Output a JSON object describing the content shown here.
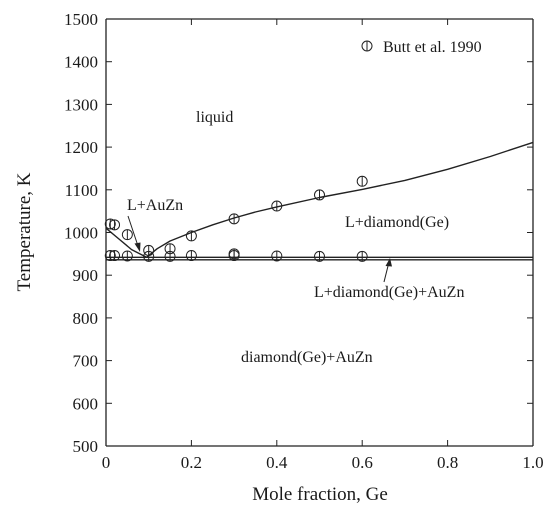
{
  "chart_data": {
    "type": "scatter",
    "xlabel": "Mole fraction, Ge",
    "ylabel": "Temperature, K",
    "xlim": [
      0,
      1.0
    ],
    "ylim": [
      500,
      1500
    ],
    "x_ticks": [
      "0",
      "0.2",
      "0.4",
      "0.6",
      "0.8",
      "1.0"
    ],
    "x_tick_values": [
      0,
      0.2,
      0.4,
      0.6,
      0.8,
      1.0
    ],
    "y_ticks": [
      "500",
      "600",
      "700",
      "800",
      "900",
      "1000",
      "1100",
      "1200",
      "1300",
      "1400",
      "1500"
    ],
    "y_tick_values": [
      500,
      600,
      700,
      800,
      900,
      1000,
      1100,
      1200,
      1300,
      1400,
      1500
    ],
    "grid": false,
    "legend": {
      "position": "top-right",
      "entries": [
        "Butt et al. 1990"
      ]
    },
    "region_labels": {
      "liquid": "liquid",
      "l_auzn": "L+AuZn",
      "l_diamond": "L+diamond(Ge)",
      "l_diamond_auzn": "L+diamond(Ge)+AuZn",
      "diamond_auzn": "diamond(Ge)+AuZn"
    },
    "computed_lines": {
      "liquidus_auzn": {
        "x": [
          0.0,
          0.03,
          0.06,
          0.095
        ],
        "y": [
          1010,
          985,
          960,
          942
        ]
      },
      "liquidus_ge": {
        "x": [
          0.095,
          0.12,
          0.15,
          0.2,
          0.25,
          0.3,
          0.35,
          0.4,
          0.5,
          0.6,
          0.7,
          0.8,
          0.9,
          1.0
        ],
        "y": [
          942,
          962,
          980,
          1000,
          1018,
          1034,
          1048,
          1060,
          1082,
          1101,
          1122,
          1148,
          1178,
          1211
        ]
      },
      "eutectic_upper": {
        "x": [
          0.0,
          1.0
        ],
        "y": [
          942,
          942
        ]
      },
      "eutectic_lower": {
        "x": [
          0.0,
          1.0
        ],
        "y": [
          936,
          936
        ]
      }
    },
    "series": [
      {
        "name": "Butt et al. 1990",
        "x": [
          0.01,
          0.02,
          0.05,
          0.1,
          0.15,
          0.2,
          0.3,
          0.4,
          0.5,
          0.6,
          0.01,
          0.02,
          0.05,
          0.1,
          0.15,
          0.2,
          0.3,
          0.3,
          0.4,
          0.5,
          0.6
        ],
        "y": [
          1020,
          1018,
          995,
          958,
          962,
          992,
          1032,
          1062,
          1088,
          1120,
          946,
          946,
          945,
          944,
          944,
          946,
          950,
          946,
          945,
          944,
          944
        ]
      }
    ]
  }
}
